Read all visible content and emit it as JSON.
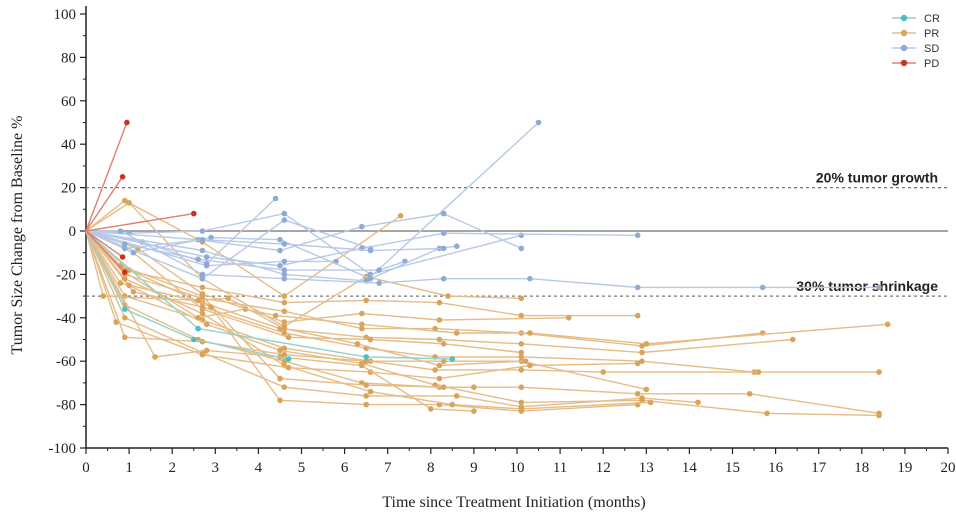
{
  "chart_data": {
    "type": "line",
    "title": "",
    "xlabel": "Time since Treatment Initiation (months)",
    "ylabel": "Tumor Size Change from Baseline %",
    "xlim": [
      0,
      20
    ],
    "ylim": [
      -100,
      100
    ],
    "x_ticks": [
      "0",
      "1",
      "2",
      "3",
      "4",
      "5",
      "6",
      "7",
      "8",
      "9",
      "10",
      "11",
      "12",
      "13",
      "14",
      "15",
      "16",
      "17",
      "18",
      "19",
      "20"
    ],
    "y_ticks": [
      "100",
      "80",
      "60",
      "40",
      "20",
      "0",
      "-20",
      "-40",
      "-60",
      "-80",
      "-100"
    ],
    "grid": false,
    "legend_position": "top-right",
    "reference_lines": [
      {
        "y": 20,
        "label": "20% tumor growth",
        "style": "dotted"
      },
      {
        "y": 0,
        "label": "",
        "style": "solid"
      },
      {
        "y": -30,
        "label": "30% tumor shrinkage",
        "style": "dotted"
      }
    ],
    "categories": [
      {
        "name": "CR",
        "color": "#4dbfbf",
        "line_color": "#8fd3cf"
      },
      {
        "name": "PR",
        "color": "#d9a35a",
        "line_color": "#e6bc87"
      },
      {
        "name": "SD",
        "color": "#8faad8",
        "line_color": "#b7c9e6"
      },
      {
        "name": "PD",
        "color": "#cc3322",
        "line_color": "#e08070"
      }
    ],
    "patients": [
      {
        "response": "PD",
        "points": [
          [
            0,
            0
          ],
          [
            0.95,
            50
          ]
        ]
      },
      {
        "response": "PD",
        "points": [
          [
            0,
            0
          ],
          [
            0.85,
            25
          ]
        ]
      },
      {
        "response": "PD",
        "points": [
          [
            0,
            0
          ],
          [
            2.5,
            8
          ]
        ]
      },
      {
        "response": "PD",
        "points": [
          [
            0,
            0
          ],
          [
            0.85,
            -12
          ]
        ]
      },
      {
        "response": "PD",
        "points": [
          [
            0,
            0
          ],
          [
            0.9,
            -19
          ]
        ]
      },
      {
        "response": "SD",
        "points": [
          [
            0,
            0
          ],
          [
            2.7,
            -22
          ],
          [
            4.6,
            5
          ],
          [
            6.6,
            -8
          ]
        ]
      },
      {
        "response": "SD",
        "points": [
          [
            0,
            0
          ],
          [
            1,
            -1
          ],
          [
            2.7,
            0
          ],
          [
            4.6,
            8
          ],
          [
            6.6,
            -20
          ],
          [
            10.1,
            -2
          ]
        ]
      },
      {
        "response": "SD",
        "points": [
          [
            0,
            0
          ],
          [
            1.3,
            -5
          ],
          [
            2.8,
            -15
          ],
          [
            4.4,
            15
          ]
        ]
      },
      {
        "response": "SD",
        "points": [
          [
            0,
            0
          ],
          [
            2.7,
            -9
          ],
          [
            4.6,
            -20
          ],
          [
            6.5,
            -23
          ],
          [
            10.5,
            50
          ]
        ]
      },
      {
        "response": "SD",
        "points": [
          [
            0,
            0
          ],
          [
            2.8,
            -16
          ],
          [
            4.6,
            -14
          ],
          [
            5.8,
            -14
          ]
        ]
      },
      {
        "response": "SD",
        "points": [
          [
            0,
            0
          ],
          [
            2.6,
            -4
          ],
          [
            4.5,
            -9
          ],
          [
            6.4,
            2
          ],
          [
            8.3,
            8
          ],
          [
            10.1,
            -8
          ]
        ]
      },
      {
        "response": "SD",
        "points": [
          [
            0,
            0
          ],
          [
            2.8,
            -12
          ],
          [
            4.5,
            -16
          ],
          [
            6.4,
            -8
          ],
          [
            8.3,
            -1
          ],
          [
            12.8,
            -2
          ]
        ]
      },
      {
        "response": "SD",
        "points": [
          [
            0,
            0
          ],
          [
            0.8,
            0
          ],
          [
            2.7,
            -20
          ],
          [
            4.6,
            -22
          ],
          [
            6.8,
            -24
          ],
          [
            8.3,
            -22
          ],
          [
            10.3,
            -22
          ],
          [
            12.8,
            -26
          ],
          [
            15.7,
            -26
          ],
          [
            18.4,
            -26
          ]
        ]
      },
      {
        "response": "SD",
        "points": [
          [
            0,
            0
          ],
          [
            0.9,
            -6
          ],
          [
            2.6,
            -13
          ],
          [
            4.6,
            -18
          ],
          [
            6.8,
            -18
          ],
          [
            7.4,
            -14
          ]
        ]
      },
      {
        "response": "SD",
        "points": [
          [
            0,
            0
          ],
          [
            1.1,
            -10
          ],
          [
            2.9,
            -3
          ],
          [
            4.5,
            -4
          ],
          [
            6.6,
            -22
          ],
          [
            8.2,
            -8
          ],
          [
            8.6,
            -7
          ]
        ]
      },
      {
        "response": "SD",
        "points": [
          [
            0,
            0
          ],
          [
            0.9,
            -8
          ],
          [
            2.7,
            -4
          ],
          [
            4.6,
            -6
          ],
          [
            6.6,
            -9
          ],
          [
            8.3,
            -8
          ]
        ]
      },
      {
        "response": "CR",
        "points": [
          [
            0,
            0
          ],
          [
            0.9,
            -36
          ],
          [
            2.5,
            -50
          ],
          [
            4.7,
            -59
          ]
        ]
      },
      {
        "response": "CR",
        "points": [
          [
            0,
            0
          ],
          [
            2.6,
            -45
          ],
          [
            6.5,
            -58
          ],
          [
            8.5,
            -59
          ]
        ]
      },
      {
        "response": "PR",
        "points": [
          [
            0,
            0
          ],
          [
            0.9,
            14
          ],
          [
            2.7,
            -5
          ],
          [
            4.6,
            -30
          ],
          [
            7.3,
            7
          ]
        ]
      },
      {
        "response": "PR",
        "points": [
          [
            0,
            0
          ],
          [
            1,
            13
          ],
          [
            2.7,
            -22
          ],
          [
            4.6,
            -44
          ],
          [
            6.5,
            -21
          ],
          [
            8.4,
            -30
          ],
          [
            10.1,
            -31
          ]
        ]
      },
      {
        "response": "PR",
        "points": [
          [
            0,
            0
          ],
          [
            0.9,
            -18
          ],
          [
            2.7,
            -26
          ],
          [
            4.6,
            -33
          ],
          [
            6.5,
            -32
          ],
          [
            8.2,
            -33
          ],
          [
            10.1,
            -39
          ],
          [
            12.8,
            -39
          ]
        ]
      },
      {
        "response": "PR",
        "points": [
          [
            0,
            0
          ],
          [
            0.9,
            -20
          ],
          [
            2.7,
            -31
          ],
          [
            4.6,
            -37
          ],
          [
            6.4,
            -45
          ],
          [
            8.1,
            -45
          ],
          [
            10.1,
            -47
          ],
          [
            12.9,
            -53
          ],
          [
            15.7,
            -47
          ]
        ]
      },
      {
        "response": "PR",
        "points": [
          [
            0,
            0
          ],
          [
            0.8,
            -24
          ],
          [
            2.7,
            -33
          ],
          [
            4.5,
            -45
          ],
          [
            6.5,
            -49
          ],
          [
            8.2,
            -50
          ],
          [
            10.1,
            -52
          ],
          [
            12.9,
            -56
          ],
          [
            16.4,
            -50
          ]
        ]
      },
      {
        "response": "PR",
        "points": [
          [
            0,
            0
          ],
          [
            1.1,
            -28
          ],
          [
            2.7,
            -35
          ],
          [
            4.6,
            -47
          ],
          [
            6.5,
            -54
          ],
          [
            8.1,
            -58
          ],
          [
            10.1,
            -58
          ],
          [
            12.9,
            -60
          ],
          [
            15.5,
            -65
          ],
          [
            18.4,
            -65
          ]
        ]
      },
      {
        "response": "PR",
        "points": [
          [
            0,
            0
          ],
          [
            0.9,
            -30
          ],
          [
            2.7,
            -41
          ],
          [
            4.6,
            -54
          ],
          [
            6.6,
            -60
          ],
          [
            8.1,
            -64
          ],
          [
            10.1,
            -64
          ],
          [
            12.0,
            -65
          ],
          [
            15.6,
            -65
          ]
        ]
      },
      {
        "response": "PR",
        "points": [
          [
            0,
            0
          ],
          [
            0.9,
            -34
          ],
          [
            2.6,
            -50
          ],
          [
            4.6,
            -60
          ],
          [
            6.4,
            -70
          ],
          [
            8.2,
            -72
          ],
          [
            10.1,
            -72
          ],
          [
            12.8,
            -75
          ],
          [
            15.4,
            -75
          ],
          [
            18.4,
            -84
          ]
        ]
      },
      {
        "response": "PR",
        "points": [
          [
            0,
            0
          ],
          [
            1.0,
            -25
          ],
          [
            2.8,
            -43
          ],
          [
            4.5,
            -55
          ],
          [
            6.4,
            -61
          ],
          [
            8.1,
            -71
          ],
          [
            10.1,
            -79
          ],
          [
            12.9,
            -78
          ],
          [
            15.8,
            -84
          ],
          [
            18.4,
            -85
          ]
        ]
      },
      {
        "response": "PR",
        "points": [
          [
            0,
            0
          ],
          [
            0.8,
            -16
          ],
          [
            2.7,
            -30
          ],
          [
            4.5,
            -68
          ],
          [
            6.5,
            -71
          ],
          [
            8.3,
            -72
          ],
          [
            9.0,
            -72
          ]
        ]
      },
      {
        "response": "PR",
        "points": [
          [
            0,
            0
          ],
          [
            0.9,
            -40
          ],
          [
            2.7,
            -56
          ],
          [
            4.6,
            -72
          ],
          [
            6.5,
            -76
          ],
          [
            8.6,
            -76
          ],
          [
            10.1,
            -81
          ],
          [
            12.9,
            -77
          ],
          [
            14.2,
            -79
          ]
        ]
      },
      {
        "response": "PR",
        "points": [
          [
            0,
            0
          ],
          [
            1.0,
            -18
          ],
          [
            2.9,
            -35
          ],
          [
            4.5,
            -78
          ],
          [
            6.5,
            -80
          ],
          [
            8.2,
            -80
          ],
          [
            10.1,
            -83
          ],
          [
            12.8,
            -80
          ]
        ]
      },
      {
        "response": "PR",
        "points": [
          [
            0,
            0
          ],
          [
            0.9,
            -22
          ],
          [
            2.7,
            -38
          ],
          [
            4.6,
            -62
          ],
          [
            6.6,
            -74
          ],
          [
            8.5,
            -80
          ],
          [
            10.1,
            -82
          ],
          [
            13.1,
            -79
          ]
        ]
      },
      {
        "response": "PR",
        "points": [
          [
            0,
            0
          ],
          [
            0.4,
            -30
          ],
          [
            2.6,
            -32
          ],
          [
            3.3,
            -31
          ],
          [
            4.6,
            -45
          ],
          [
            6.3,
            -52
          ],
          [
            8.2,
            -62
          ],
          [
            10.1,
            -60
          ],
          [
            13.0,
            -73
          ]
        ]
      },
      {
        "response": "PR",
        "points": [
          [
            0,
            0
          ],
          [
            0.7,
            -42
          ],
          [
            2.7,
            -57
          ],
          [
            4.7,
            -63
          ],
          [
            6.6,
            -65
          ],
          [
            8.2,
            -68
          ],
          [
            10.3,
            -62
          ],
          [
            12.8,
            -61
          ]
        ]
      },
      {
        "response": "PR",
        "points": [
          [
            0,
            0
          ],
          [
            0.9,
            -49
          ],
          [
            2.7,
            -51
          ],
          [
            4.6,
            -57
          ],
          [
            6.5,
            -60
          ],
          [
            8.3,
            -60
          ],
          [
            10.2,
            -60
          ]
        ]
      },
      {
        "response": "PR",
        "points": [
          [
            0,
            0
          ],
          [
            1.6,
            -58
          ],
          [
            2.8,
            -55
          ],
          [
            4.5,
            -58
          ],
          [
            6.4,
            -62
          ],
          [
            8.0,
            -82
          ],
          [
            9.0,
            -83
          ]
        ]
      },
      {
        "response": "PR",
        "points": [
          [
            0,
            0
          ],
          [
            0.9,
            -19
          ],
          [
            2.6,
            -40
          ],
          [
            3.7,
            -36
          ],
          [
            4.4,
            -39
          ],
          [
            6.4,
            -43
          ],
          [
            8.6,
            -47
          ],
          [
            10.3,
            -47
          ],
          [
            13.0,
            -52
          ],
          [
            18.6,
            -43
          ]
        ]
      },
      {
        "response": "PR",
        "points": [
          [
            0,
            0
          ],
          [
            1.2,
            -8
          ],
          [
            2.7,
            -29
          ],
          [
            4.6,
            -42
          ],
          [
            6.4,
            -38
          ],
          [
            8.2,
            -41
          ],
          [
            11.2,
            -40
          ]
        ]
      },
      {
        "response": "PR",
        "points": [
          [
            0,
            0
          ],
          [
            1.1,
            -10
          ],
          [
            2.7,
            -36
          ],
          [
            4.7,
            -49
          ],
          [
            6.6,
            -50
          ],
          [
            8.3,
            -52
          ],
          [
            10.1,
            -56
          ]
        ]
      }
    ]
  }
}
